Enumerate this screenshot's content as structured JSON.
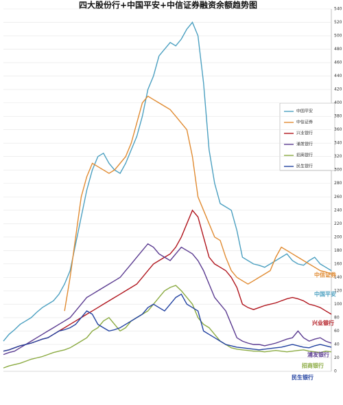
{
  "chart_data": {
    "type": "line",
    "title": "四大股份行+中国平安+中信证券融资余额趋势图",
    "ylim": [
      0,
      540
    ],
    "yticks": [
      0,
      20,
      40,
      60,
      80,
      100,
      120,
      140,
      160,
      180,
      200,
      220,
      240,
      260,
      280,
      300,
      320,
      340,
      360,
      380,
      400,
      420,
      440,
      460,
      480,
      500,
      520,
      540
    ],
    "grid": true,
    "series": [
      {
        "name": "中国平安",
        "color": "#4a9fc0",
        "values": [
          45,
          55,
          62,
          70,
          75,
          80,
          88,
          95,
          100,
          105,
          115,
          130,
          150,
          190,
          230,
          270,
          300,
          320,
          325,
          310,
          300,
          295,
          310,
          330,
          350,
          380,
          420,
          440,
          470,
          480,
          490,
          485,
          495,
          510,
          520,
          500,
          430,
          330,
          280,
          250,
          245,
          240,
          210,
          170,
          165,
          160,
          158,
          155,
          160,
          165,
          170,
          175,
          165,
          160,
          158,
          165,
          170,
          160,
          155,
          150
        ]
      },
      {
        "name": "中信证券",
        "color": "#e08a30",
        "values": [
          null,
          null,
          null,
          null,
          null,
          null,
          null,
          null,
          null,
          null,
          null,
          90,
          140,
          200,
          260,
          290,
          310,
          305,
          300,
          295,
          300,
          310,
          320,
          340,
          370,
          400,
          410,
          405,
          400,
          395,
          390,
          380,
          370,
          360,
          320,
          260,
          240,
          220,
          200,
          195,
          170,
          150,
          140,
          135,
          130,
          135,
          140,
          145,
          150,
          170,
          185,
          180,
          175,
          170,
          165,
          160,
          155,
          150,
          148,
          145
        ]
      },
      {
        "name": "兴业银行",
        "color": "#b0141c",
        "values": [
          30,
          32,
          35,
          38,
          40,
          42,
          45,
          48,
          50,
          55,
          60,
          65,
          70,
          75,
          80,
          85,
          90,
          95,
          100,
          105,
          110,
          115,
          120,
          125,
          130,
          140,
          150,
          160,
          165,
          170,
          175,
          185,
          200,
          220,
          240,
          230,
          200,
          170,
          160,
          155,
          150,
          140,
          125,
          100,
          95,
          92,
          95,
          98,
          100,
          102,
          105,
          108,
          110,
          108,
          105,
          100,
          98,
          95,
          90,
          85
        ]
      },
      {
        "name": "浦发银行",
        "color": "#5a3a90",
        "values": [
          25,
          28,
          30,
          35,
          40,
          45,
          50,
          55,
          60,
          65,
          70,
          75,
          80,
          90,
          100,
          110,
          115,
          120,
          125,
          130,
          135,
          140,
          150,
          160,
          170,
          180,
          190,
          185,
          175,
          170,
          165,
          175,
          185,
          180,
          175,
          165,
          150,
          130,
          110,
          100,
          90,
          70,
          50,
          45,
          42,
          40,
          40,
          38,
          40,
          42,
          45,
          48,
          50,
          60,
          50,
          45,
          48,
          50,
          45,
          42
        ]
      },
      {
        "name": "招商银行",
        "color": "#8aaa40",
        "values": [
          5,
          8,
          10,
          12,
          15,
          18,
          20,
          22,
          25,
          28,
          30,
          32,
          35,
          40,
          45,
          50,
          60,
          65,
          75,
          80,
          70,
          60,
          65,
          75,
          80,
          85,
          90,
          100,
          110,
          120,
          125,
          128,
          120,
          110,
          100,
          80,
          70,
          65,
          55,
          45,
          40,
          35,
          33,
          32,
          31,
          30,
          30,
          29,
          30,
          31,
          30,
          29,
          30,
          31,
          32,
          30,
          29,
          28,
          30,
          29
        ]
      },
      {
        "name": "民生银行",
        "color": "#2040a0",
        "values": [
          30,
          32,
          35,
          38,
          40,
          42,
          45,
          48,
          50,
          55,
          60,
          62,
          65,
          70,
          80,
          90,
          85,
          70,
          65,
          60,
          62,
          65,
          70,
          75,
          80,
          85,
          95,
          100,
          95,
          90,
          100,
          110,
          115,
          100,
          95,
          90,
          60,
          55,
          50,
          45,
          40,
          38,
          36,
          35,
          34,
          33,
          32,
          33,
          34,
          35,
          36,
          38,
          40,
          38,
          36,
          35,
          38,
          40,
          38,
          36
        ]
      }
    ]
  }
}
